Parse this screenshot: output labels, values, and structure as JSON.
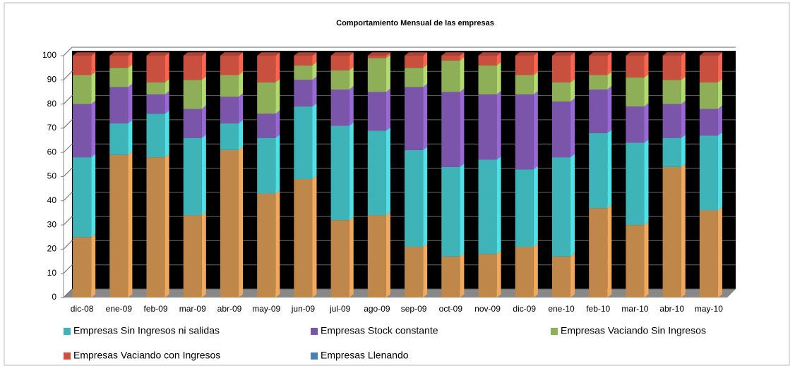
{
  "chart_data": {
    "type": "bar",
    "stacked": true,
    "title": "Comportamiento Mensual de las empresas",
    "categories": [
      "dic-08",
      "ene-09",
      "feb-09",
      "mar-09",
      "abr-09",
      "may-09",
      "jun-09",
      "jul-09",
      "ago-09",
      "sep-09",
      "oct-09",
      "nov-09",
      "dic-09",
      "ene-10",
      "feb-10",
      "mar-10",
      "abr-10",
      "may-10"
    ],
    "series": [
      {
        "color": "#c0874a",
        "values": [
          25,
          59,
          58,
          34,
          61,
          43,
          49,
          32,
          34,
          21,
          17,
          18,
          21,
          17,
          37,
          30,
          54,
          36
        ]
      },
      {
        "name": "Empresas Sin Ingresos ni salidas",
        "color": "#3fb4b8",
        "values": [
          33,
          13,
          18,
          32,
          11,
          23,
          30,
          39,
          35,
          40,
          37,
          39,
          32,
          41,
          31,
          34,
          12,
          31
        ]
      },
      {
        "name": "Empresas Stock constante",
        "color": "#7a55aa",
        "values": [
          22,
          15,
          8,
          12,
          11,
          10,
          11,
          15,
          16,
          26,
          31,
          27,
          31,
          23,
          18,
          15,
          14,
          11
        ]
      },
      {
        "name": "Empresas Vaciando Sin Ingresos",
        "color": "#8fae58",
        "values": [
          12,
          8,
          5,
          12,
          9,
          13,
          6,
          8,
          14,
          8,
          13,
          12,
          8,
          8,
          6,
          12,
          10,
          11
        ]
      },
      {
        "name": "Empresas Vaciando con Ingresos",
        "color": "#c9503e",
        "values": [
          8,
          5,
          11,
          10,
          8,
          11,
          4,
          6,
          1,
          5,
          2,
          4,
          8,
          11,
          8,
          9,
          10,
          11
        ]
      },
      {
        "name": "Empresas Llenando",
        "color": "#4a7ebb",
        "values": [
          0,
          0,
          0,
          0,
          0,
          0,
          0,
          0,
          0,
          0,
          0,
          0,
          0,
          0,
          0,
          0,
          0,
          0
        ]
      }
    ],
    "ylim": [
      0,
      100
    ],
    "yticks": [
      0,
      10,
      20,
      30,
      40,
      50,
      60,
      70,
      80,
      90,
      100
    ],
    "grid": true
  }
}
